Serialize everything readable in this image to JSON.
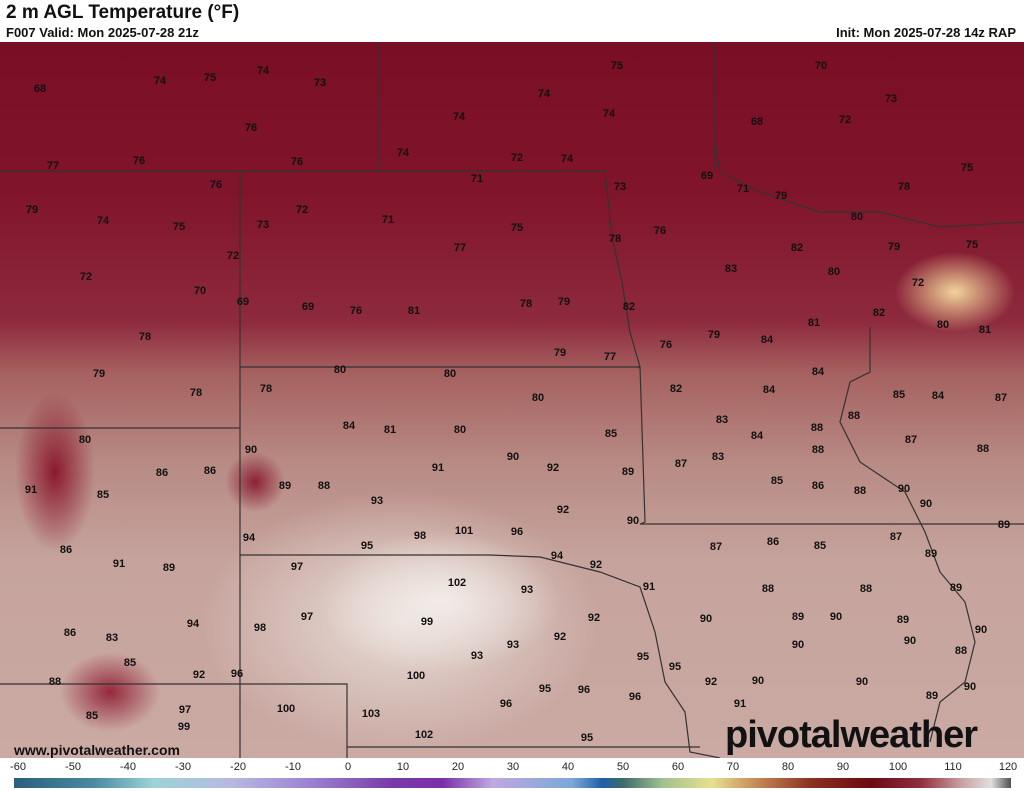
{
  "header": {
    "title": "2 m AGL Temperature (°F)",
    "valid": "F007 Valid: Mon 2025-07-28 21z",
    "init": "Init: Mon 2025-07-28 14z RAP"
  },
  "map": {
    "values": [
      "68",
      "74",
      "75",
      "74",
      "73",
      "75",
      "70",
      "74",
      "73",
      "74",
      "74",
      "68",
      "72",
      "76",
      "77",
      "76",
      "76",
      "74",
      "72",
      "74",
      "75",
      "69",
      "76",
      "71",
      "73",
      "71",
      "79",
      "78",
      "79",
      "72",
      "80",
      "74",
      "75",
      "73",
      "71",
      "75",
      "76",
      "78",
      "82",
      "79",
      "75",
      "77",
      "72",
      "72",
      "83",
      "80",
      "70",
      "72",
      "69",
      "69",
      "76",
      "81",
      "78",
      "79",
      "82",
      "82",
      "80",
      "81",
      "78",
      "81",
      "79",
      "84",
      "76",
      "79",
      "77",
      "79",
      "80",
      "80",
      "84",
      "78",
      "78",
      "82",
      "84",
      "80",
      "85",
      "84",
      "87",
      "83",
      "88",
      "80",
      "84",
      "81",
      "80",
      "85",
      "84",
      "88",
      "87",
      "90",
      "90",
      "88",
      "88",
      "86",
      "86",
      "91",
      "92",
      "89",
      "87",
      "83",
      "91",
      "85",
      "89",
      "88",
      "85",
      "86",
      "88",
      "90",
      "93",
      "92",
      "90",
      "101",
      "98",
      "96",
      "90",
      "89",
      "94",
      "87",
      "86",
      "85",
      "87",
      "86",
      "95",
      "94",
      "92",
      "89",
      "91",
      "89",
      "97",
      "102",
      "93",
      "91",
      "88",
      "88",
      "89",
      "97",
      "98",
      "99",
      "92",
      "90",
      "89",
      "90",
      "89",
      "94",
      "86",
      "83",
      "92",
      "93",
      "90",
      "90",
      "90",
      "93",
      "95",
      "88",
      "85",
      "95",
      "92",
      "96",
      "100",
      "88",
      "92",
      "90",
      "90",
      "95",
      "96",
      "96",
      "89",
      "90",
      "85",
      "97",
      "100",
      "103",
      "96",
      "91",
      "99",
      "102",
      "95"
    ]
  },
  "watermark": {
    "url": "www.pivotalweather.com",
    "logo": "pivotalweather"
  },
  "colorbar": {
    "ticks": [
      "-60",
      "-50",
      "-40",
      "-30",
      "-20",
      "-10",
      "0",
      "10",
      "20",
      "30",
      "40",
      "50",
      "60",
      "70",
      "80",
      "90",
      "100",
      "110",
      "120"
    ],
    "unit": "°F"
  }
}
